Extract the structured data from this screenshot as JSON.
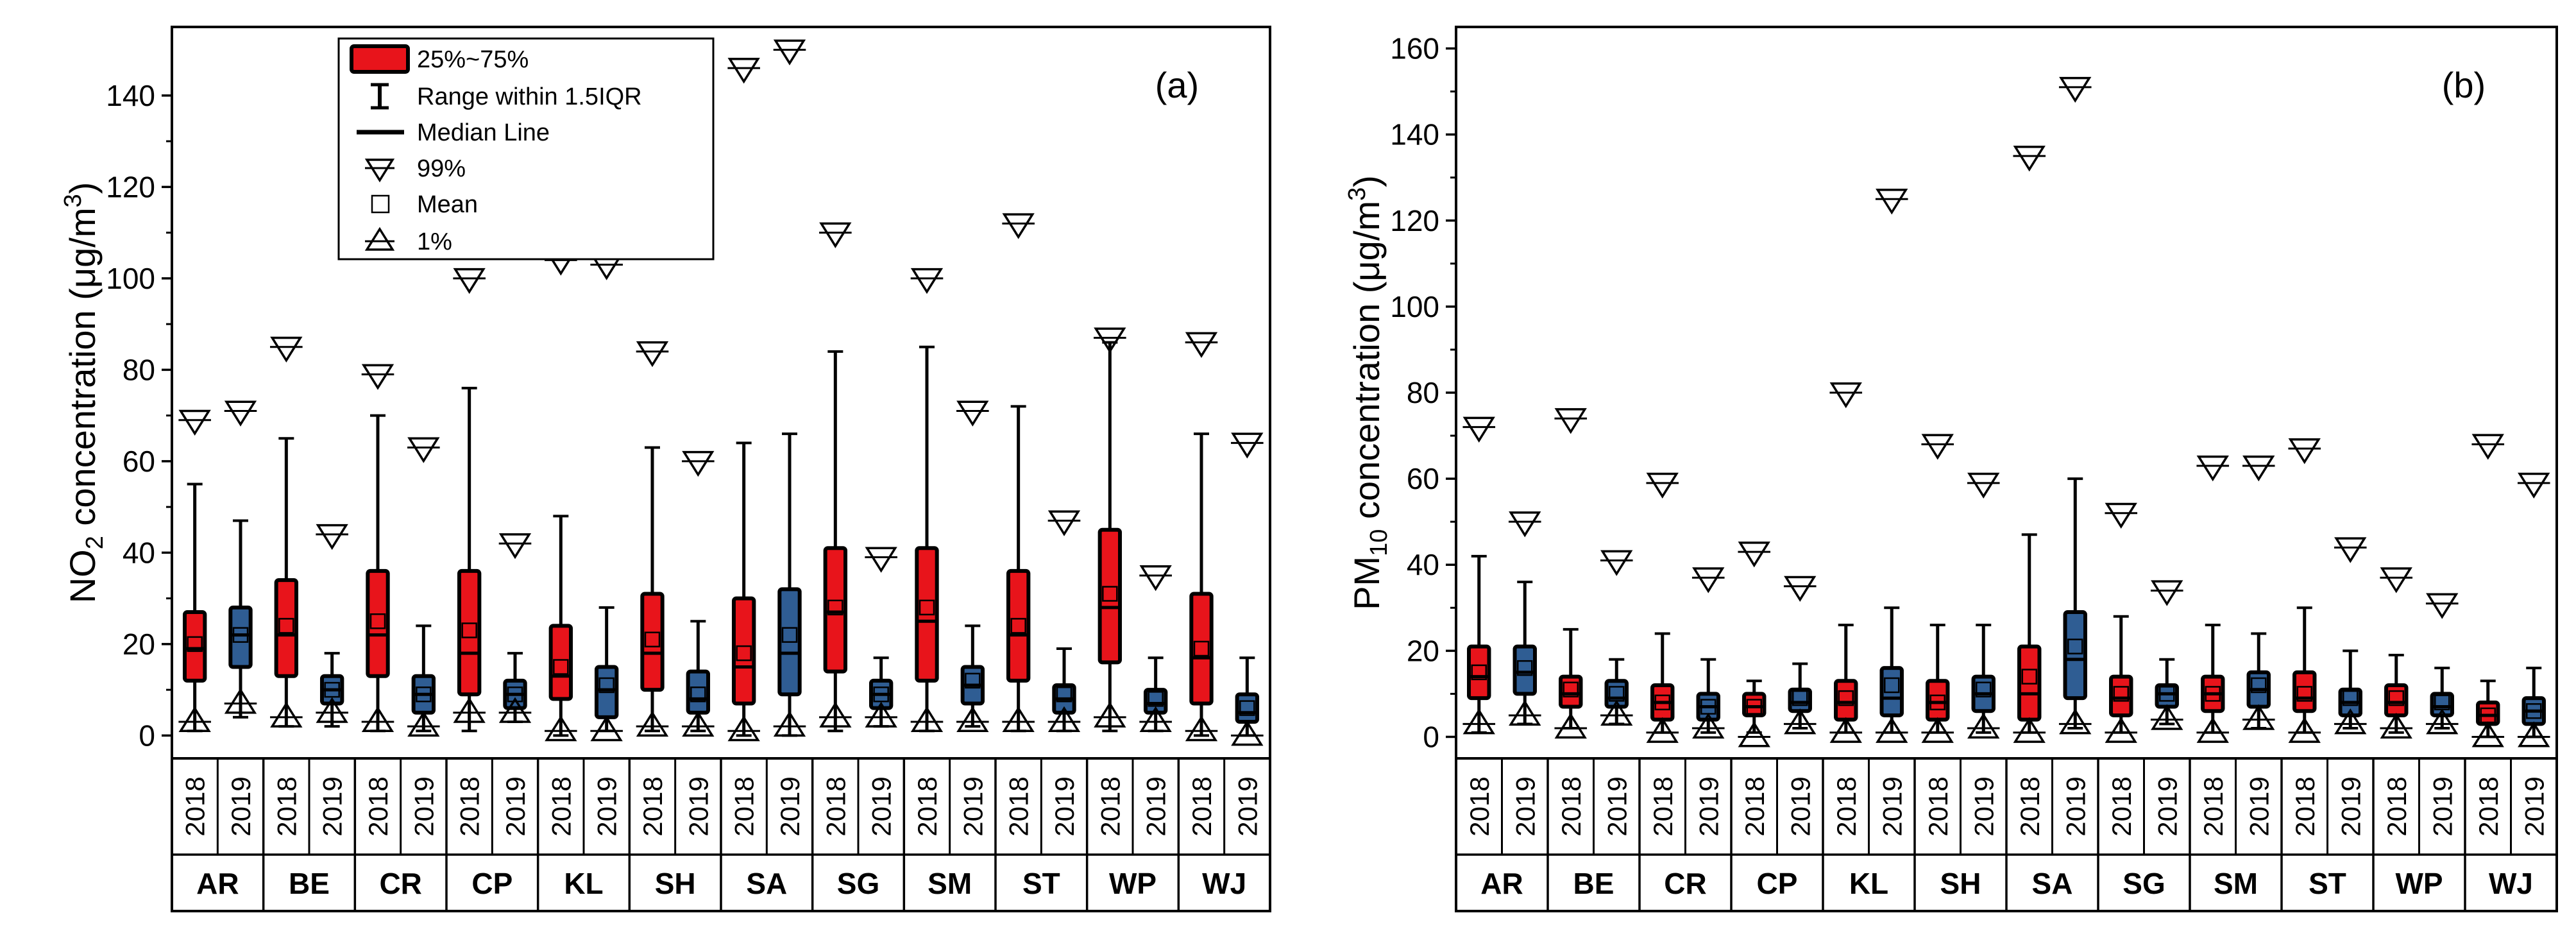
{
  "figure_title": "",
  "chart_data": [
    {
      "type": "box",
      "panel_label": "(a)",
      "title": "",
      "ylabel_parts": {
        "base": "NO",
        "sub": "2",
        "mid": " concentration (μg/m",
        "sup": "3",
        "end": ")"
      },
      "xlabel": "",
      "ylim": [
        -5,
        155
      ],
      "yticks": [
        0,
        20,
        40,
        60,
        80,
        100,
        120,
        140
      ],
      "sites": [
        "AR",
        "BE",
        "CR",
        "CP",
        "KL",
        "SH",
        "SA",
        "SG",
        "SM",
        "ST",
        "WP",
        "WJ"
      ],
      "years": [
        "2018",
        "2019"
      ],
      "year_colors": {
        "2018": "#e8141b",
        "2019": "#2f5d93"
      },
      "legend": {
        "box": "25%~75%",
        "whisker": "Range within 1.5IQR",
        "median": "Median Line",
        "p99": "99%",
        "mean": "Mean",
        "p1": "1%"
      },
      "series": [
        {
          "name": "2018",
          "boxes": [
            {
              "site": "AR",
              "min": 1,
              "q1": 12,
              "median": 19,
              "mean": 20,
              "q3": 27,
              "max": 55,
              "p1": 3,
              "p99": 69
            },
            {
              "site": "BE",
              "min": 2,
              "q1": 13,
              "median": 22,
              "mean": 24,
              "q3": 34,
              "max": 65,
              "p1": 4,
              "p99": 85
            },
            {
              "site": "CR",
              "min": 1,
              "q1": 13,
              "median": 22,
              "mean": 25,
              "q3": 36,
              "max": 70,
              "p1": 3,
              "p99": 79
            },
            {
              "site": "CP",
              "min": 1,
              "q1": 9,
              "median": 18,
              "mean": 23,
              "q3": 36,
              "max": 76,
              "p1": 5,
              "p99": 100
            },
            {
              "site": "KL",
              "min": 0,
              "q1": 8,
              "median": 13,
              "mean": 15,
              "q3": 24,
              "max": 48,
              "p1": 1,
              "p99": 104
            },
            {
              "site": "SH",
              "min": 1,
              "q1": 10,
              "median": 18,
              "mean": 21,
              "q3": 31,
              "max": 63,
              "p1": 2,
              "p99": 84
            },
            {
              "site": "SA",
              "min": 0,
              "q1": 7,
              "median": 15,
              "mean": 18,
              "q3": 30,
              "max": 64,
              "p1": 1,
              "p99": 146
            },
            {
              "site": "SG",
              "min": 1,
              "q1": 14,
              "median": 27,
              "mean": 28,
              "q3": 41,
              "max": 84,
              "p1": 4,
              "p99": 110
            },
            {
              "site": "SM",
              "min": 1,
              "q1": 12,
              "median": 25,
              "mean": 28,
              "q3": 41,
              "max": 85,
              "p1": 3,
              "p99": 100
            },
            {
              "site": "ST",
              "min": 1,
              "q1": 12,
              "median": 22,
              "mean": 24,
              "q3": 36,
              "max": 72,
              "p1": 3,
              "p99": 112
            },
            {
              "site": "WP",
              "min": 1,
              "q1": 16,
              "median": 28,
              "mean": 31,
              "q3": 45,
              "max": 86,
              "p1": 4,
              "p99": 87
            },
            {
              "site": "WJ",
              "min": 0,
              "q1": 7,
              "median": 17,
              "mean": 19,
              "q3": 31,
              "max": 66,
              "p1": 1,
              "p99": 86
            }
          ]
        },
        {
          "name": "2019",
          "boxes": [
            {
              "site": "AR",
              "min": 4,
              "q1": 15,
              "median": 22,
              "mean": 22,
              "q3": 28,
              "max": 47,
              "p1": 7,
              "p99": 71
            },
            {
              "site": "BE",
              "min": 2,
              "q1": 7,
              "median": 10,
              "mean": 10,
              "q3": 13,
              "max": 18,
              "p1": 5,
              "p99": 44
            },
            {
              "site": "CR",
              "min": 1,
              "q1": 5,
              "median": 9,
              "mean": 9,
              "q3": 13,
              "max": 24,
              "p1": 2,
              "p99": 63
            },
            {
              "site": "CP",
              "min": 3,
              "q1": 6,
              "median": 9,
              "mean": 9,
              "q3": 12,
              "max": 18,
              "p1": 5,
              "p99": 42
            },
            {
              "site": "KL",
              "min": 1,
              "q1": 4,
              "median": 10,
              "mean": 11,
              "q3": 15,
              "max": 28,
              "p1": 1,
              "p99": 103
            },
            {
              "site": "SH",
              "min": 1,
              "q1": 5,
              "median": 8,
              "mean": 9,
              "q3": 14,
              "max": 25,
              "p1": 2,
              "p99": 60
            },
            {
              "site": "SA",
              "min": 0,
              "q1": 9,
              "median": 18,
              "mean": 22,
              "q3": 32,
              "max": 66,
              "p1": 2,
              "p99": 150
            },
            {
              "site": "SG",
              "min": 2,
              "q1": 6,
              "median": 9,
              "mean": 9,
              "q3": 12,
              "max": 17,
              "p1": 4,
              "p99": 39
            },
            {
              "site": "SM",
              "min": 2,
              "q1": 7,
              "median": 11,
              "mean": 12,
              "q3": 15,
              "max": 24,
              "p1": 3,
              "p99": 71
            },
            {
              "site": "ST",
              "min": 1,
              "q1": 5,
              "median": 8,
              "mean": 9,
              "q3": 11,
              "max": 19,
              "p1": 3,
              "p99": 47
            },
            {
              "site": "WP",
              "min": 1,
              "q1": 5,
              "median": 7,
              "mean": 8,
              "q3": 10,
              "max": 17,
              "p1": 3,
              "p99": 35
            },
            {
              "site": "WJ",
              "min": 0,
              "q1": 3,
              "median": 5,
              "mean": 6,
              "q3": 9,
              "max": 17,
              "p1": 0,
              "p99": 64
            }
          ]
        }
      ]
    },
    {
      "type": "box",
      "panel_label": "(b)",
      "title": "",
      "ylabel_parts": {
        "base": "PM",
        "sub": "10",
        "mid": " concentration (μg/m",
        "sup": "3",
        "end": ")"
      },
      "xlabel": "",
      "ylim": [
        -5,
        165
      ],
      "yticks": [
        0,
        20,
        40,
        60,
        80,
        100,
        120,
        140,
        160
      ],
      "sites": [
        "AR",
        "BE",
        "CR",
        "CP",
        "KL",
        "SH",
        "SA",
        "SG",
        "SM",
        "ST",
        "WP",
        "WJ"
      ],
      "years": [
        "2018",
        "2019"
      ],
      "year_colors": {
        "2018": "#e8141b",
        "2019": "#2f5d93"
      },
      "series": [
        {
          "name": "2018",
          "boxes": [
            {
              "site": "AR",
              "min": 1,
              "q1": 9,
              "median": 14,
              "mean": 15,
              "q3": 21,
              "max": 42,
              "p1": 3,
              "p99": 72
            },
            {
              "site": "BE",
              "min": 2,
              "q1": 7,
              "median": 10,
              "mean": 11,
              "q3": 14,
              "max": 25,
              "p1": 2,
              "p99": 74
            },
            {
              "site": "CR",
              "min": 1,
              "q1": 4,
              "median": 8,
              "mean": 8,
              "q3": 12,
              "max": 24,
              "p1": 1,
              "p99": 59
            },
            {
              "site": "CP",
              "min": 1,
              "q1": 5,
              "median": 7,
              "mean": 7,
              "q3": 10,
              "max": 13,
              "p1": 0,
              "p99": 43
            },
            {
              "site": "KL",
              "min": 1,
              "q1": 4,
              "median": 8,
              "mean": 9,
              "q3": 13,
              "max": 26,
              "p1": 1,
              "p99": 80
            },
            {
              "site": "SH",
              "min": 1,
              "q1": 4,
              "median": 8,
              "mean": 8,
              "q3": 13,
              "max": 26,
              "p1": 1,
              "p99": 68
            },
            {
              "site": "SA",
              "min": 1,
              "q1": 4,
              "median": 10,
              "mean": 14,
              "q3": 21,
              "max": 47,
              "p1": 1,
              "p99": 135
            },
            {
              "site": "SG",
              "min": 1,
              "q1": 5,
              "median": 9,
              "mean": 10,
              "q3": 14,
              "max": 28,
              "p1": 1,
              "p99": 52
            },
            {
              "site": "SM",
              "min": 1,
              "q1": 6,
              "median": 10,
              "mean": 10,
              "q3": 14,
              "max": 26,
              "p1": 1,
              "p99": 63
            },
            {
              "site": "ST",
              "min": 1,
              "q1": 6,
              "median": 9,
              "mean": 10,
              "q3": 15,
              "max": 30,
              "p1": 1,
              "p99": 67
            },
            {
              "site": "WP",
              "min": 1,
              "q1": 5,
              "median": 8,
              "mean": 9,
              "q3": 12,
              "max": 19,
              "p1": 2,
              "p99": 37
            },
            {
              "site": "WJ",
              "min": 0,
              "q1": 3,
              "median": 5,
              "mean": 5,
              "q3": 8,
              "max": 13,
              "p1": 0,
              "p99": 68
            }
          ]
        },
        {
          "name": "2019",
          "boxes": [
            {
              "site": "AR",
              "min": 3,
              "q1": 10,
              "median": 15,
              "mean": 16,
              "q3": 21,
              "max": 36,
              "p1": 5,
              "p99": 50
            },
            {
              "site": "BE",
              "min": 3,
              "q1": 7,
              "median": 9,
              "mean": 10,
              "q3": 13,
              "max": 18,
              "p1": 5,
              "p99": 41
            },
            {
              "site": "CR",
              "min": 1,
              "q1": 4,
              "median": 7,
              "mean": 7,
              "q3": 10,
              "max": 18,
              "p1": 2,
              "p99": 37
            },
            {
              "site": "CP",
              "min": 2,
              "q1": 6,
              "median": 8,
              "mean": 9,
              "q3": 11,
              "max": 17,
              "p1": 3,
              "p99": 35
            },
            {
              "site": "KL",
              "min": 1,
              "q1": 5,
              "median": 9,
              "mean": 12,
              "q3": 16,
              "max": 30,
              "p1": 1,
              "p99": 125
            },
            {
              "site": "SH",
              "min": 1,
              "q1": 6,
              "median": 10,
              "mean": 11,
              "q3": 14,
              "max": 26,
              "p1": 2,
              "p99": 59
            },
            {
              "site": "SA",
              "min": 2,
              "q1": 9,
              "median": 18,
              "mean": 21,
              "q3": 29,
              "max": 60,
              "p1": 3,
              "p99": 151
            },
            {
              "site": "SG",
              "min": 3,
              "q1": 7,
              "median": 10,
              "mean": 10,
              "q3": 12,
              "max": 18,
              "p1": 4,
              "p99": 34
            },
            {
              "site": "SM",
              "min": 2,
              "q1": 7,
              "median": 11,
              "mean": 12,
              "q3": 15,
              "max": 24,
              "p1": 4,
              "p99": 63
            },
            {
              "site": "ST",
              "min": 2,
              "q1": 5,
              "median": 8,
              "mean": 9,
              "q3": 11,
              "max": 20,
              "p1": 3,
              "p99": 44
            },
            {
              "site": "WP",
              "min": 2,
              "q1": 5,
              "median": 7,
              "mean": 8,
              "q3": 10,
              "max": 16,
              "p1": 3,
              "p99": 31
            },
            {
              "site": "WJ",
              "min": 0,
              "q1": 3,
              "median": 6,
              "mean": 6,
              "q3": 9,
              "max": 16,
              "p1": 0,
              "p99": 59
            }
          ]
        }
      ]
    }
  ]
}
